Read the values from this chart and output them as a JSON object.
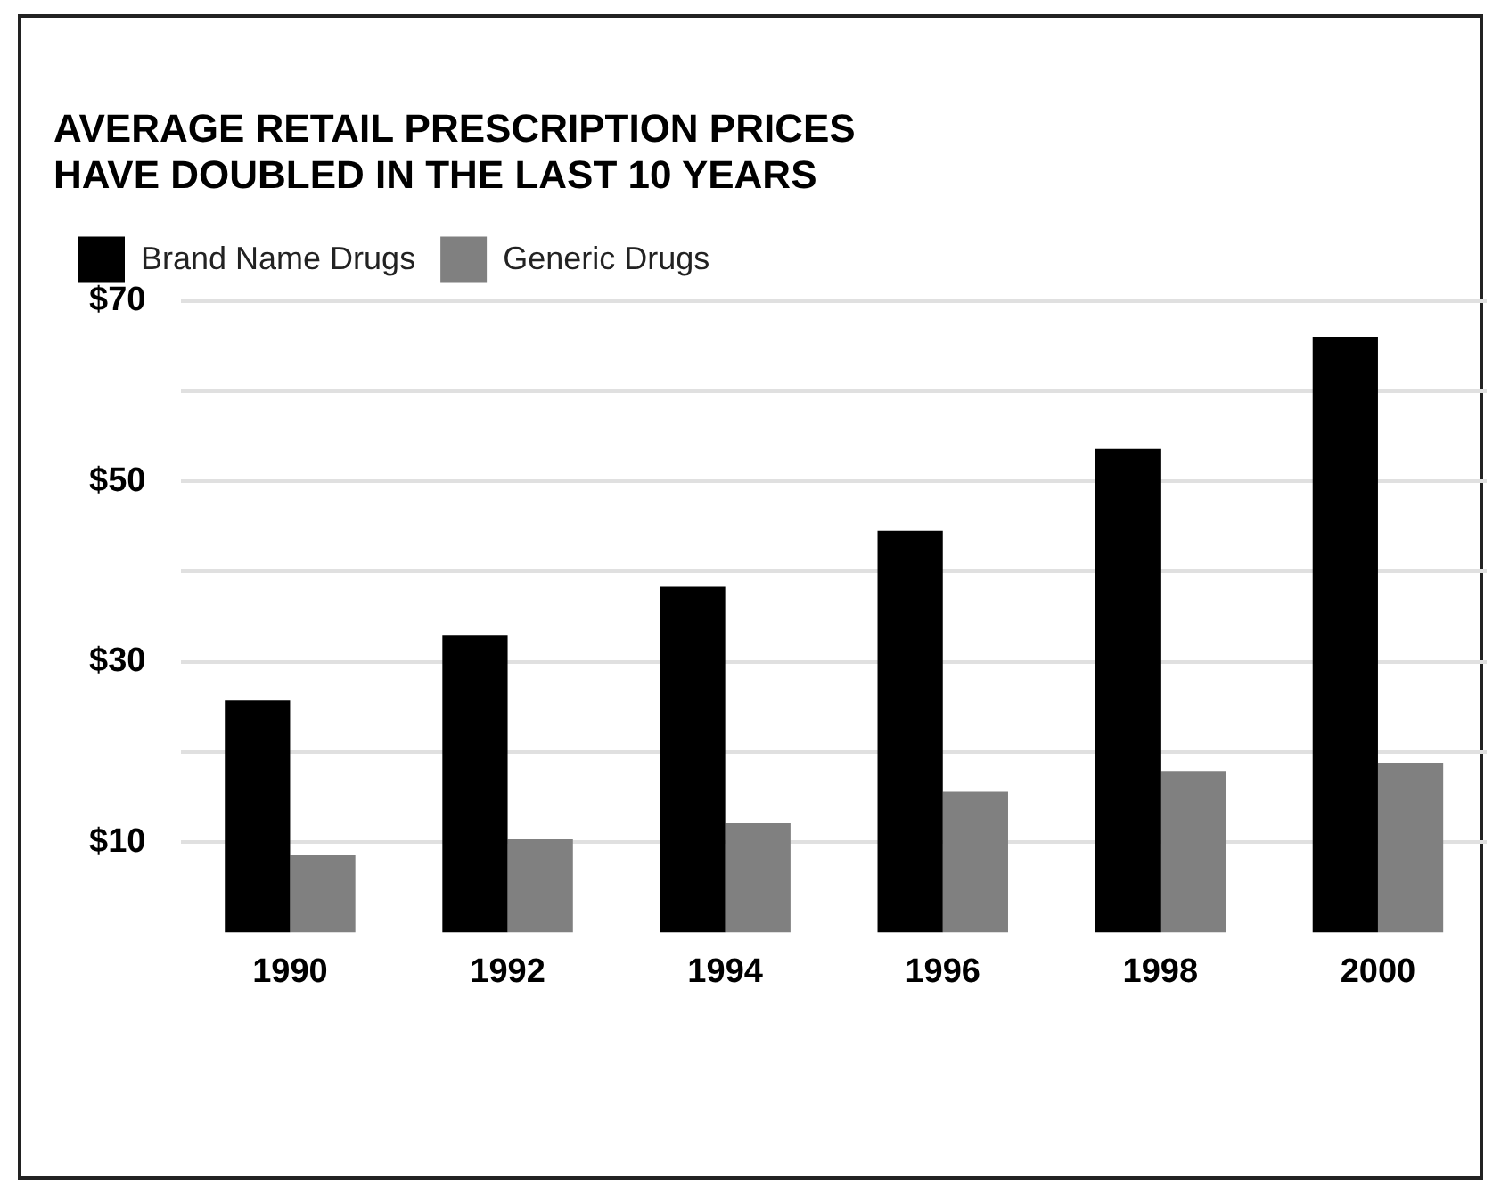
{
  "chart_data": {
    "type": "bar",
    "title": [
      "AVERAGE RETAIL PRESCRIPTION PRICES",
      "HAVE DOUBLED IN THE LAST 10 YEARS"
    ],
    "categories": [
      "1990",
      "1992",
      "1994",
      "1996",
      "1998",
      "2000"
    ],
    "series": [
      {
        "name": "Brand Name Drugs",
        "color": "#000000",
        "values": [
          25.7,
          32.9,
          38.3,
          44.5,
          53.6,
          66
        ]
      },
      {
        "name": "Generic Drugs",
        "color": "#808080",
        "values": [
          8.6,
          10.3,
          12.1,
          15.6,
          17.9,
          18.8
        ]
      }
    ],
    "ylim": [
      0,
      70
    ],
    "yticks": [
      {
        "value": 10,
        "label": "$10"
      },
      {
        "value": 20,
        "label": null
      },
      {
        "value": 30,
        "label": "$30"
      },
      {
        "value": 40,
        "label": null
      },
      {
        "value": 50,
        "label": "$50"
      },
      {
        "value": 60,
        "label": null
      },
      {
        "value": 70,
        "label": "$70"
      }
    ],
    "grid": "y",
    "legend": "top left"
  }
}
